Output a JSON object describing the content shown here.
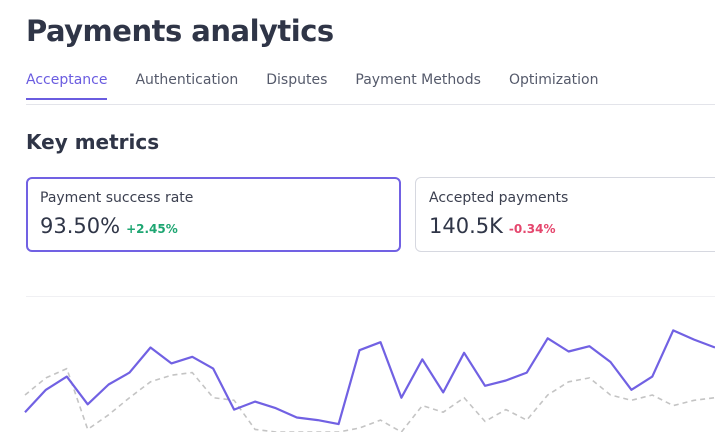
{
  "header": {
    "title": "Payments analytics"
  },
  "tabs": [
    "Acceptance",
    "Authentication",
    "Disputes",
    "Payment Methods",
    "Optimization"
  ],
  "active_tab": 0,
  "section_title": "Key metrics",
  "metrics": [
    {
      "label": "Payment success rate",
      "value": "93.50%",
      "change": "+2.45%",
      "trend": "up",
      "selected": true
    },
    {
      "label": "Accepted payments",
      "value": "140.5K",
      "change": "-0.34%",
      "trend": "down",
      "selected": false
    }
  ],
  "chart_data": {
    "type": "line",
    "ylim": [
      0,
      100
    ],
    "series": [
      {
        "color": "#7161e3",
        "dashed": false,
        "values": [
          15,
          32,
          42,
          21,
          36,
          45,
          64,
          52,
          57,
          48,
          17,
          23,
          18,
          11,
          9,
          6,
          62,
          68,
          26,
          55,
          30,
          60,
          35,
          39,
          45,
          71,
          61,
          65,
          53,
          32,
          42,
          77,
          70,
          64
        ]
      },
      {
        "color": "#c4c4c4",
        "dashed": true,
        "values": [
          28,
          41,
          48,
          2,
          13,
          26,
          38,
          43,
          45,
          26,
          24,
          2,
          0,
          0,
          0,
          0,
          3,
          9,
          0,
          20,
          15,
          26,
          8,
          17,
          9,
          28,
          38,
          41,
          28,
          24,
          28,
          20,
          24,
          26
        ]
      }
    ]
  }
}
